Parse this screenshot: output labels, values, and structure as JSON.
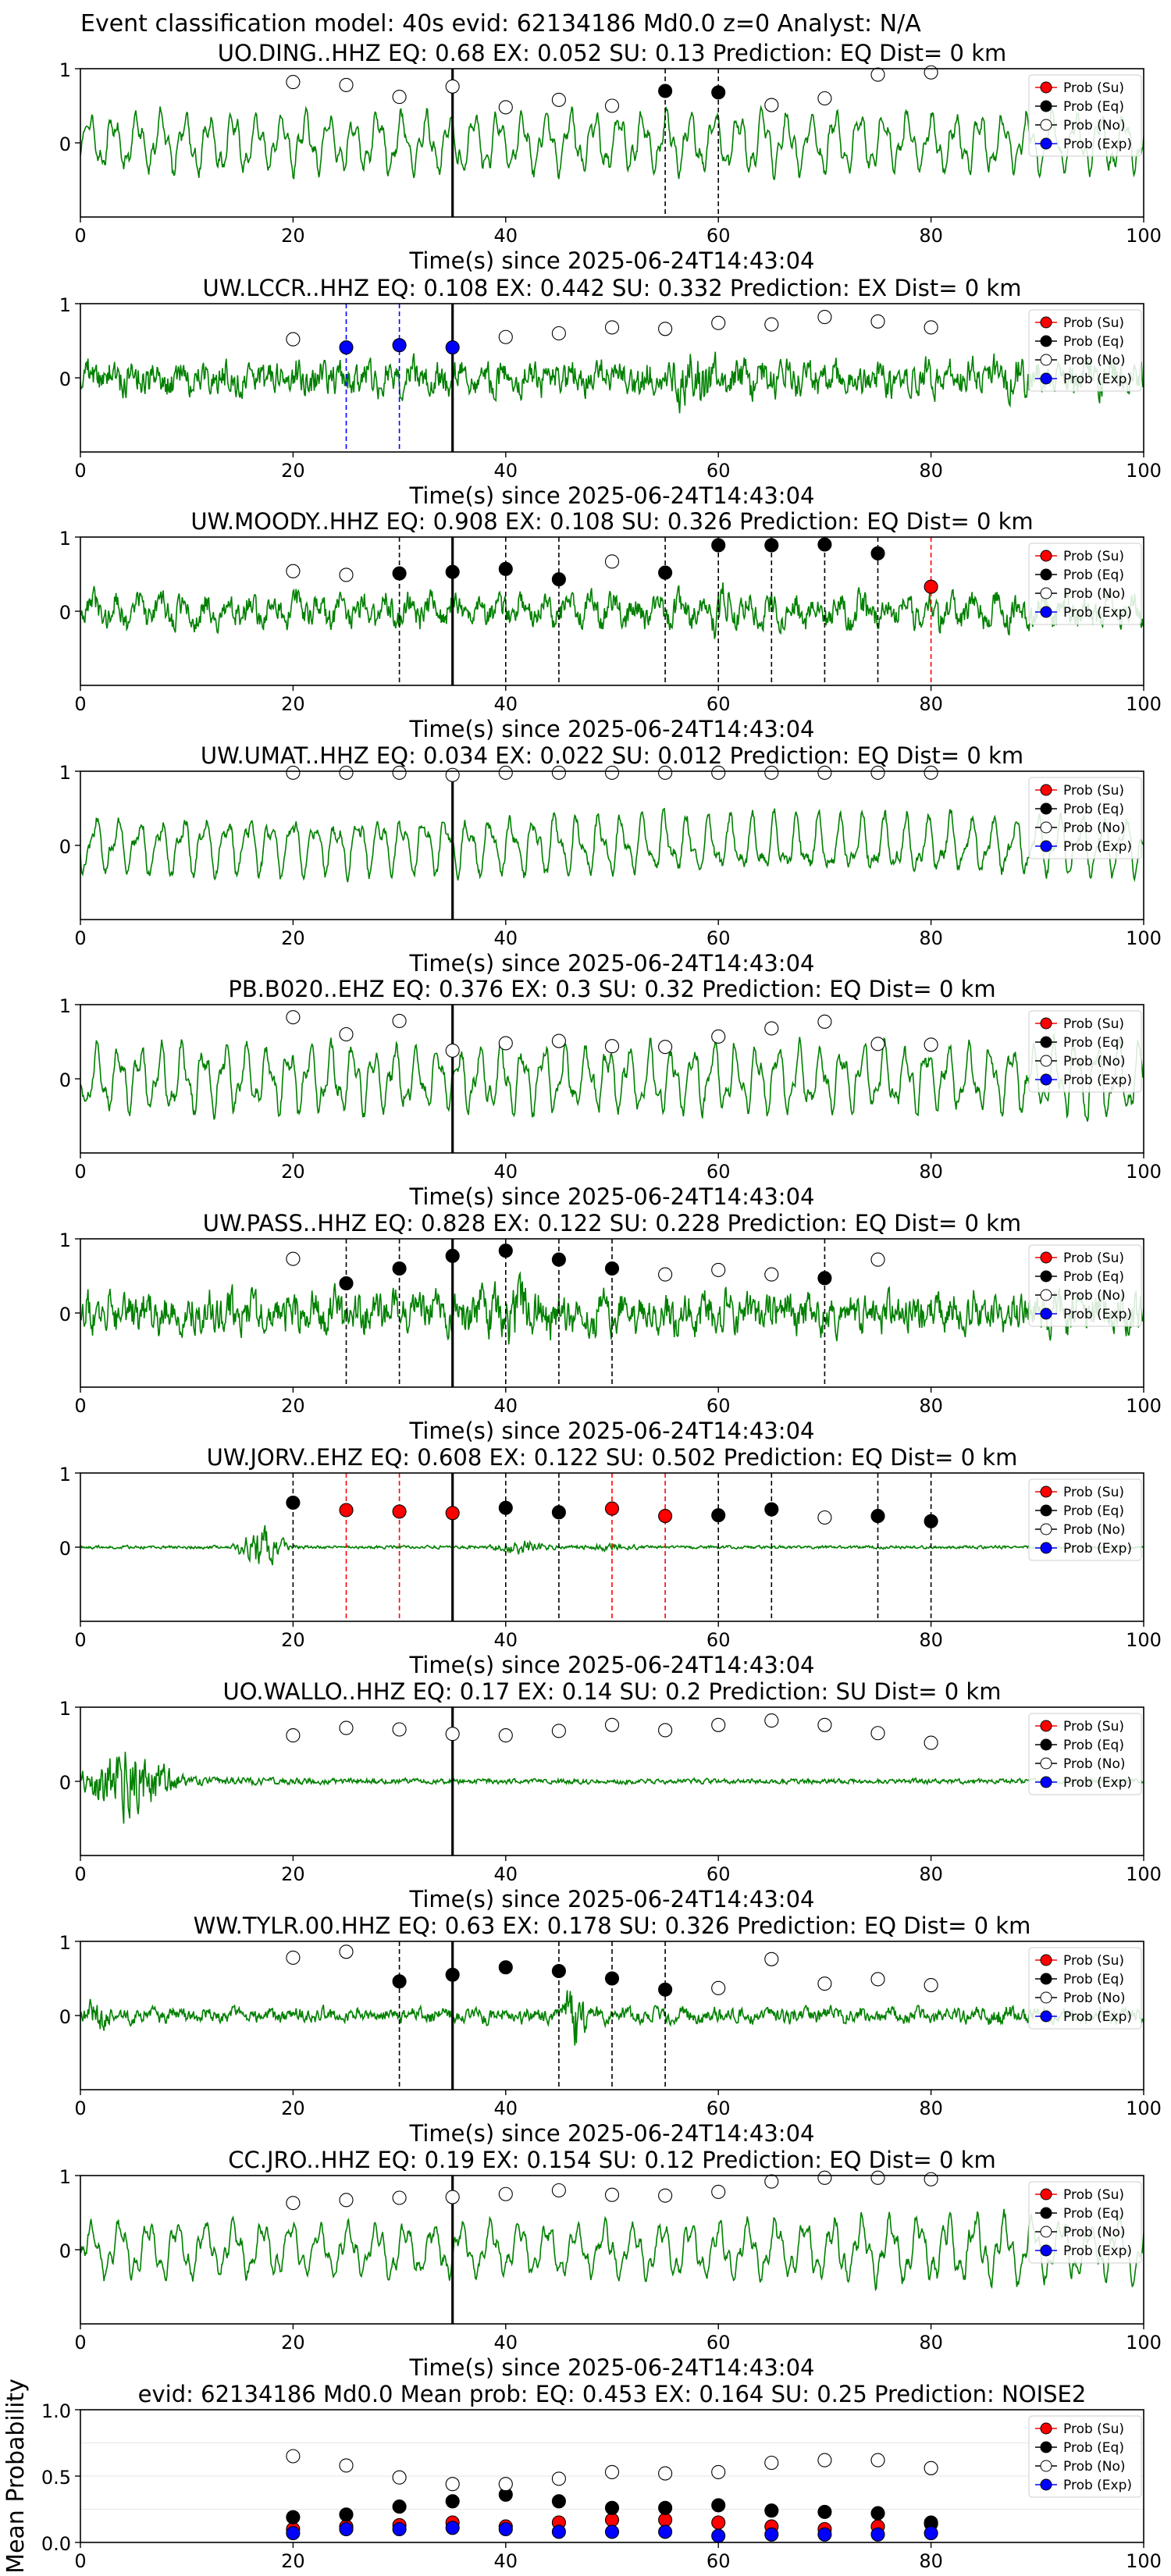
{
  "suptitle": "Event classification model: 40s evid: 62134186 Md0.0 z=0 Analyst: N/A",
  "legend": [
    "Prob (Su)",
    "Prob (Eq)",
    "Prob (No)",
    "Prob (Exp)"
  ],
  "colors": {
    "trace": "#008000",
    "su": "#ff0000",
    "eq": "#000000",
    "no": "#ffffff",
    "exp": "#0000ff",
    "pick_line": "#000000"
  },
  "chart_data": [
    {
      "type": "line",
      "title": "UO.DING..HHZ    EQ: 0.68   EX: 0.052   SU: 0.13    Prediction: EQ    Dist= 0 km",
      "xlabel": "Time(s) since 2025-06-24T14:43:04",
      "xlim": [
        0,
        100
      ],
      "ylim": [
        -1,
        1
      ],
      "xticks": [
        "0",
        "20",
        "40",
        "60",
        "80",
        "100"
      ],
      "yticks": [
        "1",
        "0"
      ],
      "pick_time": 35,
      "trace": {
        "seed": 1,
        "style": "lowfreq",
        "amp": 0.55,
        "bursts": []
      },
      "probs": {
        "su": {
          "x": [],
          "y": []
        },
        "eq": {
          "x": [
            55,
            60
          ],
          "y": [
            0.7,
            0.68
          ]
        },
        "no": {
          "x": [
            20,
            25,
            30,
            35,
            40,
            45,
            50,
            65,
            70,
            75,
            80
          ],
          "y": [
            0.82,
            0.78,
            0.62,
            0.76,
            0.48,
            0.58,
            0.5,
            0.51,
            0.6,
            0.92,
            0.95
          ]
        },
        "exp": {
          "x": [],
          "y": []
        }
      },
      "vlines": [
        {
          "x": 55,
          "color": "eq"
        },
        {
          "x": 60,
          "color": "eq"
        }
      ]
    },
    {
      "type": "line",
      "title": "UW.LCCR..HHZ   EQ: 0.108   EX: 0.442   SU: 0.332   Prediction: EX    Dist= 0 km",
      "xlabel": "Time(s) since 2025-06-24T14:43:04",
      "xlim": [
        0,
        100
      ],
      "ylim": [
        -1,
        1
      ],
      "xticks": [
        "0",
        "20",
        "40",
        "60",
        "80",
        "100"
      ],
      "yticks": [
        "1",
        "0"
      ],
      "pick_time": 35,
      "trace": {
        "seed": 2,
        "style": "hf",
        "amp": 0.32,
        "bursts": [
          [
            55,
            60,
            1.9
          ],
          [
            61,
            64,
            1.3
          ],
          [
            85,
            90,
            1.2
          ]
        ]
      },
      "probs": {
        "su": {
          "x": [],
          "y": []
        },
        "eq": {
          "x": [],
          "y": []
        },
        "no": {
          "x": [
            20,
            40,
            45,
            50,
            55,
            60,
            65,
            70,
            75,
            80
          ],
          "y": [
            0.52,
            0.55,
            0.6,
            0.68,
            0.66,
            0.74,
            0.72,
            0.82,
            0.76,
            0.68
          ]
        },
        "exp": {
          "x": [
            25,
            30,
            35
          ],
          "y": [
            0.41,
            0.44,
            0.41
          ]
        }
      },
      "vlines": [
        {
          "x": 25,
          "color": "exp"
        },
        {
          "x": 30,
          "color": "exp"
        }
      ]
    },
    {
      "type": "line",
      "title": "UW.MOODY..HHZ   EQ: 0.908   EX: 0.108   SU: 0.326   Prediction: EQ    Dist= 0 km",
      "xlabel": "Time(s) since 2025-06-24T14:43:04",
      "xlim": [
        0,
        100
      ],
      "ylim": [
        -1,
        1
      ],
      "xticks": [
        "0",
        "20",
        "40",
        "60",
        "80",
        "100"
      ],
      "yticks": [
        "1",
        "0"
      ],
      "pick_time": 35,
      "trace": {
        "seed": 3,
        "style": "mixed",
        "amp": 0.38,
        "bursts": [
          [
            59,
            62,
            1.6
          ],
          [
            72,
            76,
            1.2
          ]
        ]
      },
      "probs": {
        "su": {
          "x": [
            80
          ],
          "y": [
            0.33
          ]
        },
        "eq": {
          "x": [
            30,
            35,
            40,
            45,
            55,
            60,
            65,
            70,
            75
          ],
          "y": [
            0.51,
            0.53,
            0.57,
            0.43,
            0.52,
            0.89,
            0.89,
            0.9,
            0.78
          ]
        },
        "no": {
          "x": [
            20,
            25,
            50
          ],
          "y": [
            0.54,
            0.49,
            0.67
          ]
        },
        "exp": {
          "x": [],
          "y": []
        }
      },
      "vlines": [
        {
          "x": 30,
          "color": "eq"
        },
        {
          "x": 40,
          "color": "eq"
        },
        {
          "x": 45,
          "color": "eq"
        },
        {
          "x": 55,
          "color": "eq"
        },
        {
          "x": 60,
          "color": "eq"
        },
        {
          "x": 65,
          "color": "eq"
        },
        {
          "x": 70,
          "color": "eq"
        },
        {
          "x": 75,
          "color": "eq"
        },
        {
          "x": 80,
          "color": "su"
        }
      ]
    },
    {
      "type": "line",
      "title": "UW.UMAT..HHZ   EQ: 0.034   EX: 0.022   SU: 0.012   Prediction: EQ    Dist= 0 km",
      "xlabel": "Time(s) since 2025-06-24T14:43:04",
      "xlim": [
        0,
        100
      ],
      "ylim": [
        -1,
        1
      ],
      "xticks": [
        "0",
        "20",
        "40",
        "60",
        "80",
        "100"
      ],
      "yticks": [
        "1",
        "0"
      ],
      "pick_time": 35,
      "trace": {
        "seed": 4,
        "style": "lowfreq",
        "amp": 0.55,
        "bursts": []
      },
      "probs": {
        "su": {
          "x": [],
          "y": []
        },
        "eq": {
          "x": [],
          "y": []
        },
        "no": {
          "x": [
            20,
            25,
            30,
            35,
            40,
            45,
            50,
            55,
            60,
            65,
            70,
            75,
            80
          ],
          "y": [
            0.98,
            0.98,
            0.98,
            0.95,
            0.98,
            0.98,
            0.98,
            0.98,
            0.98,
            0.98,
            0.98,
            0.98,
            0.98
          ]
        },
        "exp": {
          "x": [],
          "y": []
        }
      },
      "vlines": []
    },
    {
      "type": "line",
      "title": "PB.B020..EHZ   EQ: 0.376  EX: 0.3  SU: 0.32   Prediction: EQ    Dist= 0 km",
      "xlabel": "Time(s) since 2025-06-24T14:43:04",
      "xlim": [
        0,
        100
      ],
      "ylim": [
        -1,
        1
      ],
      "xticks": [
        "0",
        "20",
        "40",
        "60",
        "80",
        "100"
      ],
      "yticks": [
        "1",
        "0"
      ],
      "pick_time": 35,
      "trace": {
        "seed": 5,
        "style": "lowfreq",
        "amp": 0.62,
        "bursts": [
          [
            90,
            100,
            1.2
          ]
        ]
      },
      "probs": {
        "su": {
          "x": [],
          "y": []
        },
        "eq": {
          "x": [],
          "y": []
        },
        "no": {
          "x": [
            20,
            25,
            30,
            35,
            40,
            45,
            50,
            55,
            60,
            65,
            70,
            75,
            80
          ],
          "y": [
            0.83,
            0.6,
            0.78,
            0.38,
            0.48,
            0.51,
            0.44,
            0.43,
            0.57,
            0.68,
            0.77,
            0.47,
            0.46
          ]
        },
        "exp": {
          "x": [],
          "y": []
        }
      },
      "vlines": []
    },
    {
      "type": "line",
      "title": "UW.PASS..HHZ   EQ: 0.828  EX: 0.122  SU: 0.228   Prediction: EQ    Dist= 0 km",
      "xlabel": "Time(s) since 2025-06-24T14:43:04",
      "xlim": [
        0,
        100
      ],
      "ylim": [
        -1,
        1
      ],
      "xticks": [
        "0",
        "20",
        "40",
        "60",
        "80",
        "100"
      ],
      "yticks": [
        "1",
        "0"
      ],
      "pick_time": 35,
      "trace": {
        "seed": 6,
        "style": "hf",
        "amp": 0.38,
        "bursts": [
          [
            36,
            46,
            1.6
          ],
          [
            98,
            100,
            1.4
          ]
        ]
      },
      "probs": {
        "su": {
          "x": [],
          "y": []
        },
        "eq": {
          "x": [
            25,
            30,
            35,
            40,
            45,
            50,
            70
          ],
          "y": [
            0.4,
            0.6,
            0.77,
            0.84,
            0.72,
            0.6,
            0.47
          ]
        },
        "no": {
          "x": [
            20,
            55,
            60,
            65,
            75
          ],
          "y": [
            0.73,
            0.52,
            0.58,
            0.52,
            0.72
          ]
        },
        "exp": {
          "x": [],
          "y": []
        }
      },
      "vlines": [
        {
          "x": 25,
          "color": "eq"
        },
        {
          "x": 30,
          "color": "eq"
        },
        {
          "x": 40,
          "color": "eq"
        },
        {
          "x": 45,
          "color": "eq"
        },
        {
          "x": 50,
          "color": "eq"
        },
        {
          "x": 70,
          "color": "eq"
        }
      ]
    },
    {
      "type": "line",
      "title": "UW.JORV..EHZ   EQ: 0.608  EX: 0.122  SU: 0.502   Prediction: EQ    Dist= 0 km",
      "xlabel": "Time(s) since 2025-06-24T14:43:04",
      "xlim": [
        0,
        100
      ],
      "ylim": [
        -1,
        1
      ],
      "xticks": [
        "0",
        "20",
        "40",
        "60",
        "80",
        "100"
      ],
      "yticks": [
        "1",
        "0"
      ],
      "pick_time": 35,
      "trace": {
        "seed": 7,
        "style": "quiet",
        "amp": 0.03,
        "bursts": [
          [
            14,
            20,
            14.0
          ],
          [
            38,
            45,
            5.0
          ],
          [
            46,
            53,
            2.5
          ]
        ]
      },
      "probs": {
        "su": {
          "x": [
            25,
            30,
            35,
            50,
            55
          ],
          "y": [
            0.5,
            0.48,
            0.46,
            0.52,
            0.42
          ]
        },
        "eq": {
          "x": [
            20,
            40,
            45,
            60,
            65,
            75,
            80
          ],
          "y": [
            0.6,
            0.53,
            0.47,
            0.43,
            0.51,
            0.42,
            0.35
          ]
        },
        "no": {
          "x": [
            70
          ],
          "y": [
            0.4
          ]
        },
        "exp": {
          "x": [],
          "y": []
        }
      },
      "vlines": [
        {
          "x": 20,
          "color": "eq"
        },
        {
          "x": 25,
          "color": "su"
        },
        {
          "x": 30,
          "color": "su"
        },
        {
          "x": 40,
          "color": "eq"
        },
        {
          "x": 45,
          "color": "eq"
        },
        {
          "x": 50,
          "color": "su"
        },
        {
          "x": 55,
          "color": "su"
        },
        {
          "x": 60,
          "color": "eq"
        },
        {
          "x": 65,
          "color": "eq"
        },
        {
          "x": 75,
          "color": "eq"
        },
        {
          "x": 80,
          "color": "eq"
        }
      ]
    },
    {
      "type": "line",
      "title": "UO.WALLO..HHZ   EQ: 0.17   EX: 0.14   SU: 0.2    Prediction: SU    Dist= 0 km",
      "xlabel": "Time(s) since 2025-06-24T14:43:04",
      "xlim": [
        0,
        100
      ],
      "ylim": [
        -1,
        1
      ],
      "xticks": [
        "0",
        "20",
        "40",
        "60",
        "80",
        "100"
      ],
      "yticks": [
        "1",
        "0"
      ],
      "pick_time": 35,
      "trace": {
        "seed": 8,
        "style": "decay",
        "amp": 0.05,
        "bursts": [
          [
            0,
            10,
            6.0
          ]
        ]
      },
      "probs": {
        "su": {
          "x": [],
          "y": []
        },
        "eq": {
          "x": [],
          "y": []
        },
        "no": {
          "x": [
            20,
            25,
            30,
            35,
            40,
            45,
            50,
            55,
            60,
            65,
            70,
            75,
            80
          ],
          "y": [
            0.62,
            0.72,
            0.7,
            0.64,
            0.62,
            0.68,
            0.76,
            0.69,
            0.76,
            0.82,
            0.76,
            0.65,
            0.52
          ]
        },
        "exp": {
          "x": [],
          "y": []
        }
      },
      "vlines": []
    },
    {
      "type": "line",
      "title": "WW.TYLR.00.HHZ   EQ: 0.63   EX: 0.178   SU: 0.326   Prediction: EQ    Dist= 0 km",
      "xlabel": "Time(s) since 2025-06-24T14:43:04",
      "xlim": [
        0,
        100
      ],
      "ylim": [
        -1,
        1
      ],
      "xticks": [
        "0",
        "20",
        "40",
        "60",
        "80",
        "100"
      ],
      "yticks": [
        "1",
        "0"
      ],
      "pick_time": 35,
      "trace": {
        "seed": 9,
        "style": "hf",
        "amp": 0.14,
        "bursts": [
          [
            0,
            3,
            2.5
          ],
          [
            45,
            48,
            4.5
          ],
          [
            85,
            88,
            1.5
          ]
        ]
      },
      "probs": {
        "su": {
          "x": [],
          "y": []
        },
        "eq": {
          "x": [
            30,
            35,
            40,
            45,
            50,
            55
          ],
          "y": [
            0.46,
            0.55,
            0.65,
            0.6,
            0.5,
            0.35
          ]
        },
        "no": {
          "x": [
            20,
            25,
            60,
            65,
            70,
            75,
            80
          ],
          "y": [
            0.78,
            0.86,
            0.37,
            0.76,
            0.43,
            0.49,
            0.41
          ]
        },
        "exp": {
          "x": [],
          "y": []
        }
      },
      "vlines": [
        {
          "x": 30,
          "color": "eq"
        },
        {
          "x": 45,
          "color": "eq"
        },
        {
          "x": 50,
          "color": "eq"
        },
        {
          "x": 55,
          "color": "eq"
        }
      ]
    },
    {
      "type": "line",
      "title": "CC.JRO..HHZ   EQ: 0.19   EX: 0.154   SU: 0.12   Prediction: EQ    Dist= 0 km",
      "xlabel": "Time(s) since 2025-06-24T14:43:04",
      "xlim": [
        0,
        100
      ],
      "ylim": [
        -1,
        1
      ],
      "xticks": [
        "0",
        "20",
        "40",
        "60",
        "80",
        "100"
      ],
      "yticks": [
        "1",
        "0"
      ],
      "pick_time": 35,
      "trace": {
        "seed": 10,
        "style": "lowfreq",
        "amp": 0.5,
        "bursts": [
          [
            60,
            100,
            1.3
          ]
        ]
      },
      "probs": {
        "su": {
          "x": [],
          "y": []
        },
        "eq": {
          "x": [],
          "y": []
        },
        "no": {
          "x": [
            20,
            25,
            30,
            35,
            40,
            45,
            50,
            55,
            60,
            65,
            70,
            75,
            80
          ],
          "y": [
            0.63,
            0.67,
            0.7,
            0.71,
            0.75,
            0.8,
            0.74,
            0.73,
            0.78,
            0.92,
            0.97,
            0.97,
            0.95
          ]
        },
        "exp": {
          "x": [],
          "y": []
        }
      },
      "vlines": []
    },
    {
      "type": "scatter",
      "title": "evid: 62134186  Md0.0   Mean prob:   EQ: 0.453  EX: 0.164  SU: 0.25   Prediction: NOISE2",
      "xlabel": "",
      "ylabel": "Mean Probability",
      "xlim": [
        0,
        100
      ],
      "ylim": [
        0,
        1
      ],
      "xticks": [
        "0",
        "20",
        "40",
        "60",
        "80",
        "100"
      ],
      "yticks": [
        "0.0",
        "0.5",
        "1.0"
      ],
      "probs": {
        "su": {
          "x": [
            20,
            25,
            30,
            35,
            40,
            45,
            50,
            55,
            60,
            65,
            70,
            75,
            80
          ],
          "y": [
            0.1,
            0.12,
            0.13,
            0.15,
            0.12,
            0.15,
            0.17,
            0.17,
            0.15,
            0.12,
            0.1,
            0.12,
            0.14
          ]
        },
        "eq": {
          "x": [
            20,
            25,
            30,
            35,
            40,
            45,
            50,
            55,
            60,
            65,
            70,
            75,
            80
          ],
          "y": [
            0.19,
            0.21,
            0.27,
            0.31,
            0.36,
            0.31,
            0.26,
            0.26,
            0.28,
            0.24,
            0.23,
            0.22,
            0.15
          ]
        },
        "no": {
          "x": [
            20,
            25,
            30,
            35,
            40,
            45,
            50,
            55,
            60,
            65,
            70,
            75,
            80
          ],
          "y": [
            0.65,
            0.58,
            0.49,
            0.44,
            0.44,
            0.48,
            0.53,
            0.52,
            0.53,
            0.6,
            0.62,
            0.62,
            0.56
          ]
        },
        "exp": {
          "x": [
            20,
            25,
            30,
            35,
            40,
            45,
            50,
            55,
            60,
            65,
            70,
            75,
            80
          ],
          "y": [
            0.07,
            0.1,
            0.1,
            0.11,
            0.1,
            0.08,
            0.08,
            0.08,
            0.05,
            0.06,
            0.06,
            0.06,
            0.07
          ]
        }
      },
      "vlines": []
    }
  ]
}
